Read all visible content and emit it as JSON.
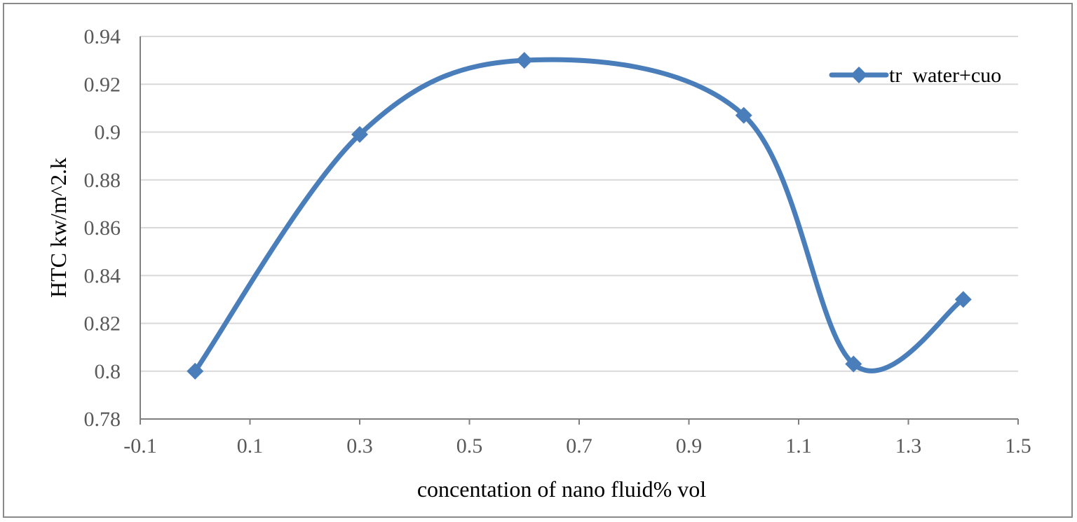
{
  "chart_data": {
    "type": "line",
    "smooth": true,
    "xlabel": "concentation of nano fluid% vol",
    "ylabel": "HTC kw/m^2.k",
    "xlim": [
      -0.1,
      1.5
    ],
    "ylim": [
      0.78,
      0.94
    ],
    "xticks": [
      "-0.1",
      "0.1",
      "0.3",
      "0.5",
      "0.7",
      "0.9",
      "1.1",
      "1.3",
      "1.5"
    ],
    "yticks": [
      "0.78",
      "0.8",
      "0.82",
      "0.84",
      "0.86",
      "0.88",
      "0.9",
      "0.92",
      "0.94"
    ],
    "grid": "horizontal",
    "legend_position": "top-right",
    "series": [
      {
        "name": "tr  water+cuo",
        "color": "#4a7ebb",
        "marker": "diamond",
        "x": [
          0,
          0.3,
          0.6,
          1.0,
          1.2,
          1.4
        ],
        "y": [
          0.8,
          0.899,
          0.93,
          0.907,
          0.803,
          0.83
        ]
      }
    ]
  }
}
